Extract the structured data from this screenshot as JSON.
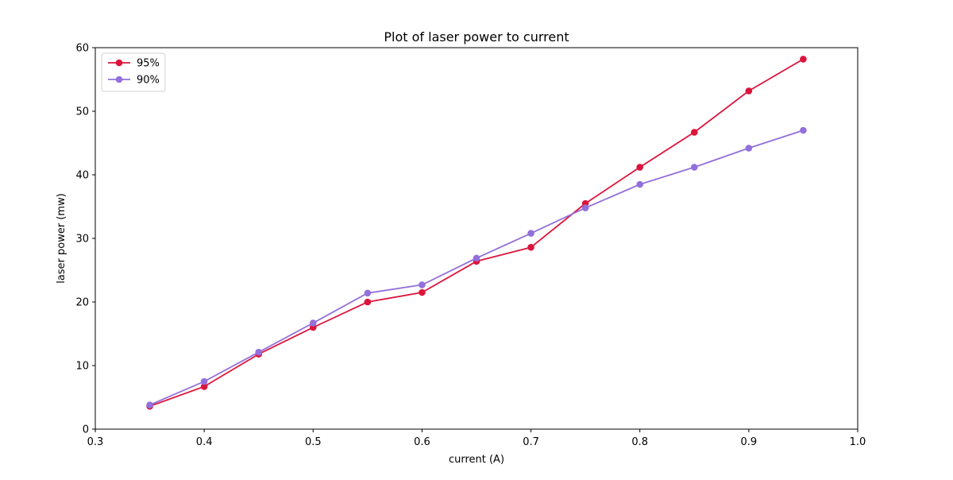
{
  "chart_data": {
    "type": "line",
    "title": "Plot of laser power to current",
    "xlabel": "current (A)",
    "ylabel": "laser power (mw)",
    "xlim": [
      0.3,
      1.0
    ],
    "ylim": [
      0,
      60
    ],
    "xticks": [
      "0.3",
      "0.4",
      "0.5",
      "0.6",
      "0.7",
      "0.8",
      "0.9",
      "1.0"
    ],
    "yticks": [
      "0",
      "10",
      "20",
      "30",
      "40",
      "50",
      "60"
    ],
    "grid": false,
    "legend_position": "top-left",
    "x": [
      0.35,
      0.4,
      0.45,
      0.5,
      0.55,
      0.6,
      0.65,
      0.7,
      0.75,
      0.8,
      0.85,
      0.9,
      0.95
    ],
    "series": [
      {
        "name": "95%",
        "color": "#dc143c",
        "marker": "circle",
        "values": [
          3.6,
          6.7,
          11.8,
          16.0,
          20.0,
          21.5,
          26.4,
          28.6,
          35.5,
          41.2,
          46.7,
          53.2,
          58.2
        ]
      },
      {
        "name": "90%",
        "color": "#9370db",
        "marker": "circle",
        "values": [
          3.8,
          7.5,
          12.1,
          16.7,
          21.4,
          22.7,
          26.9,
          30.8,
          34.8,
          38.5,
          41.2,
          44.2,
          47.0
        ]
      }
    ]
  }
}
